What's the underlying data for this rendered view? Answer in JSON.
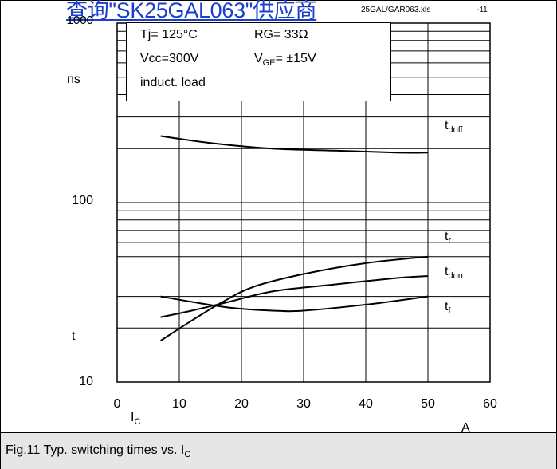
{
  "watermark": "查询\"SK25GAL063\"供应商",
  "file_ref": "25GAL/GAR063.xls",
  "page_number": "-11",
  "conditions": {
    "tj": "Tj= 125°C",
    "rg": "RG=  33Ω",
    "vcc": "Vcc=300V",
    "vge_prefix": "V",
    "vge_sub": "GE",
    "vge_suffix": "= ±15V",
    "load": "induct. load"
  },
  "caption": {
    "text": "Fig.11 Typ. switching times vs. I",
    "sub": "C"
  },
  "chart_data": {
    "type": "line",
    "y_scale": "log",
    "xlim": [
      0,
      60
    ],
    "ylim": [
      10,
      1000
    ],
    "x_ticks": [
      "0",
      "10",
      "20",
      "30",
      "40",
      "50",
      "60"
    ],
    "y_ticks": [
      "10",
      "100",
      "1000"
    ],
    "ylabel_unit": "ns",
    "ylabel": "t",
    "xlabel": "I",
    "xlabel_sub": "C",
    "xlabel_unit": "A",
    "grid": true,
    "series": [
      {
        "name": "t",
        "name_sub": "doff",
        "x": [
          7,
          15,
          25,
          35,
          45,
          50
        ],
        "y": [
          235,
          215,
          200,
          195,
          190,
          190
        ]
      },
      {
        "name": "t",
        "name_sub": "r",
        "x": [
          7,
          12,
          17,
          22,
          30,
          40,
          50
        ],
        "y": [
          17,
          22,
          28,
          34,
          40,
          46,
          50
        ]
      },
      {
        "name": "t",
        "name_sub": "don",
        "x": [
          7,
          12,
          18,
          25,
          35,
          45,
          50
        ],
        "y": [
          23,
          25,
          28,
          32,
          35,
          38,
          39
        ]
      },
      {
        "name": "t",
        "name_sub": "f",
        "x": [
          7,
          12,
          18,
          25,
          30,
          40,
          50
        ],
        "y": [
          30,
          28,
          26,
          25,
          25,
          27,
          30
        ]
      }
    ]
  }
}
